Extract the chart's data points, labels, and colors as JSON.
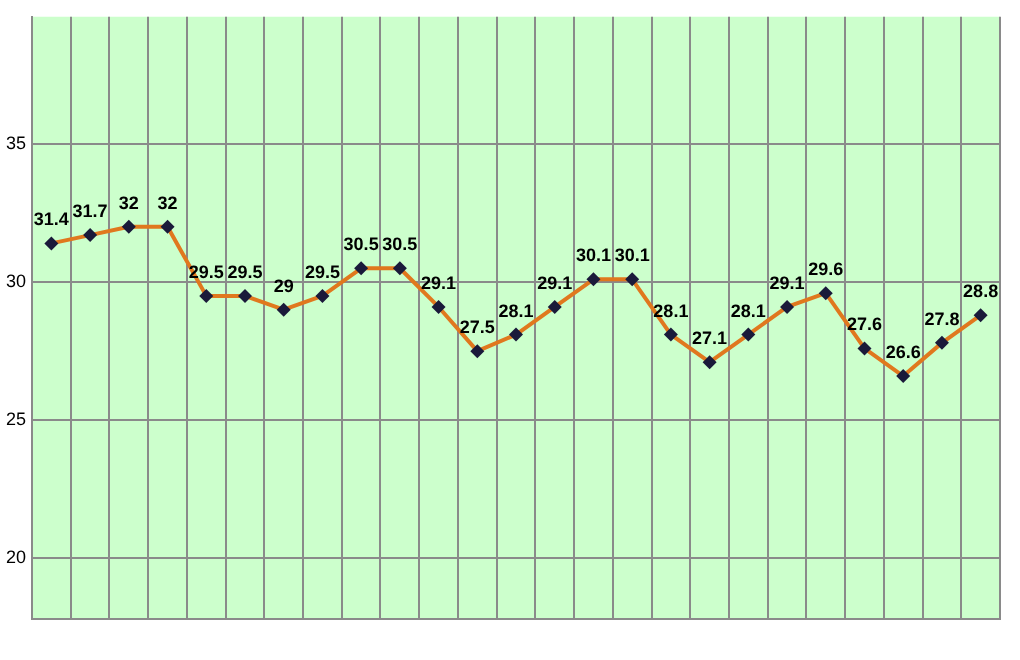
{
  "chart_data": {
    "type": "line",
    "categories": [
      null,
      null,
      null,
      null,
      null,
      null,
      null,
      null,
      null,
      null,
      null,
      null,
      null,
      null,
      null,
      null,
      null,
      null,
      null,
      null,
      null,
      null,
      null,
      null,
      null
    ],
    "series": [
      {
        "color": "#e0781e",
        "values": [
          31.4,
          31.7,
          32,
          32,
          29.5,
          29.5,
          29,
          29.5,
          30.5,
          30.5,
          29.1,
          27.5,
          28.1,
          29.1,
          30.1,
          30.1,
          28.1,
          27.1,
          28.1,
          29.1,
          29.6,
          27.6,
          26.6,
          27.8,
          28.8
        ]
      }
    ],
    "ylim": [
      17.8,
      39.6
    ],
    "yticks": [
      20,
      25,
      30,
      35
    ],
    "grid": true,
    "marker": "diamond",
    "line_style": "solid",
    "data_labels": true,
    "legend": false
  }
}
